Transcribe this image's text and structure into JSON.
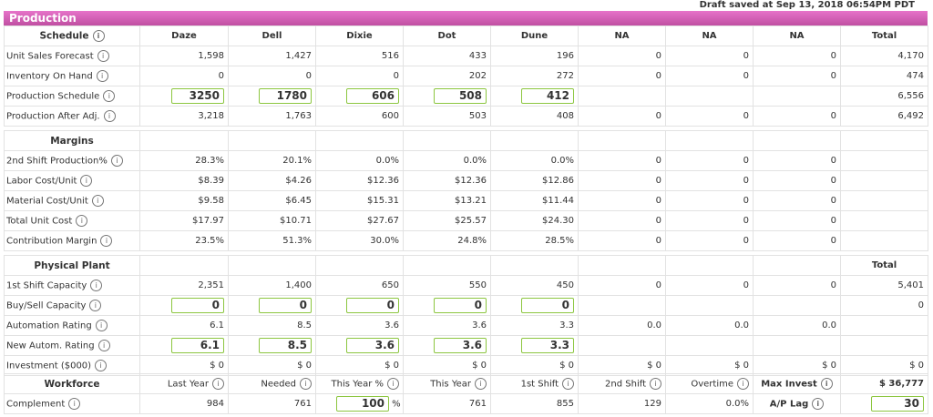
{
  "draft_status": "Draft saved at Sep 13, 2018 06:54PM PDT",
  "panel_title": "Production",
  "sections": [
    {
      "header": [
        "Schedule",
        "Daze",
        "Dell",
        "Dixie",
        "Dot",
        "Dune",
        "NA",
        "NA",
        "NA",
        "Total"
      ],
      "header_info": true,
      "rows": [
        {
          "label": "Unit Sales Forecast",
          "cells": [
            "1,598",
            "1,427",
            "516",
            "433",
            "196",
            "0",
            "0",
            "0",
            "4,170"
          ]
        },
        {
          "label": "Inventory On Hand",
          "cells": [
            "0",
            "0",
            "0",
            "202",
            "272",
            "0",
            "0",
            "0",
            "474"
          ]
        },
        {
          "label": "Production Schedule",
          "cells": [
            "3250",
            "1780",
            "606",
            "508",
            "412",
            "",
            "",
            "",
            "6,556"
          ],
          "inputs": [
            0,
            1,
            2,
            3,
            4
          ]
        },
        {
          "label": "Production After Adj.",
          "cells": [
            "3,218",
            "1,763",
            "600",
            "503",
            "408",
            "0",
            "0",
            "0",
            "6,492"
          ]
        }
      ]
    },
    {
      "header": [
        "Margins",
        "",
        "",
        "",
        "",
        "",
        "",
        "",
        "",
        ""
      ],
      "rows": [
        {
          "label": "2nd Shift Production%",
          "cells": [
            "28.3%",
            "20.1%",
            "0.0%",
            "0.0%",
            "0.0%",
            "0",
            "0",
            "0",
            ""
          ]
        },
        {
          "label": "Labor Cost/Unit",
          "cells": [
            "$8.39",
            "$4.26",
            "$12.36",
            "$12.36",
            "$12.86",
            "0",
            "0",
            "0",
            ""
          ]
        },
        {
          "label": "Material Cost/Unit",
          "cells": [
            "$9.58",
            "$6.45",
            "$15.31",
            "$13.21",
            "$11.44",
            "0",
            "0",
            "0",
            ""
          ]
        },
        {
          "label": "Total Unit Cost",
          "cells": [
            "$17.97",
            "$10.71",
            "$27.67",
            "$25.57",
            "$24.30",
            "0",
            "0",
            "0",
            ""
          ]
        },
        {
          "label": "Contribution Margin",
          "cells": [
            "23.5%",
            "51.3%",
            "30.0%",
            "24.8%",
            "28.5%",
            "0",
            "0",
            "0",
            ""
          ]
        }
      ]
    },
    {
      "header": [
        "Physical Plant",
        "",
        "",
        "",
        "",
        "",
        "",
        "",
        "",
        "Total"
      ],
      "rows": [
        {
          "label": "1st Shift Capacity",
          "cells": [
            "2,351",
            "1,400",
            "650",
            "550",
            "450",
            "0",
            "0",
            "0",
            "5,401"
          ]
        },
        {
          "label": "Buy/Sell Capacity",
          "cells": [
            "0",
            "0",
            "0",
            "0",
            "0",
            "",
            "",
            "",
            "0"
          ],
          "inputs": [
            0,
            1,
            2,
            3,
            4
          ]
        },
        {
          "label": "Automation Rating",
          "cells": [
            "6.1",
            "8.5",
            "3.6",
            "3.6",
            "3.3",
            "0.0",
            "0.0",
            "0.0",
            ""
          ]
        },
        {
          "label": "New Autom. Rating",
          "cells": [
            "6.1",
            "8.5",
            "3.6",
            "3.6",
            "3.3",
            "",
            "",
            "",
            ""
          ],
          "inputs": [
            0,
            1,
            2,
            3,
            4
          ]
        },
        {
          "label": "Investment ($000)",
          "cells": [
            "$ 0",
            "$ 0",
            "$ 0",
            "$ 0",
            "$ 0",
            "$ 0",
            "$ 0",
            "$ 0",
            "$ 0"
          ]
        }
      ]
    },
    {
      "header": [
        "Workforce",
        "Last Year",
        "Needed",
        "This Year %",
        "This Year",
        "1st Shift",
        "2nd Shift",
        "Overtime",
        "Max Invest",
        "$ 36,777"
      ],
      "workforce": true,
      "rows": [
        {
          "label": "Complement",
          "cells": [
            "984",
            "761",
            "100",
            "761",
            "855",
            "129",
            "0.0%",
            "A/P Lag",
            "30"
          ],
          "inputs": [
            2,
            8
          ],
          "suffix": {
            "2": "%"
          }
        }
      ]
    }
  ],
  "colors": {
    "header_bar": "#d35eb6",
    "input_border": "#8cc63f"
  }
}
